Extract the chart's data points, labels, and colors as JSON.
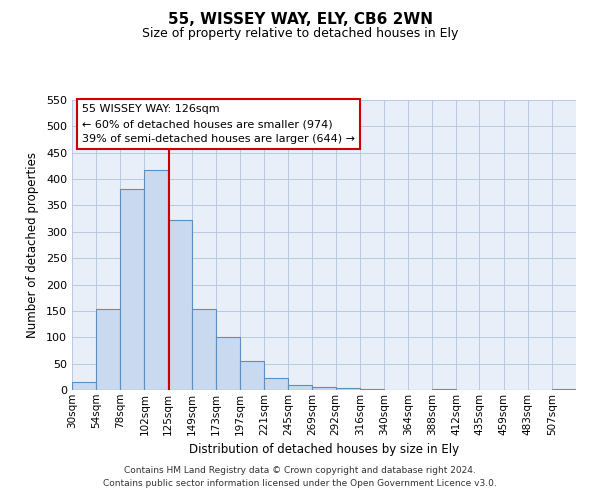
{
  "title": "55, WISSEY WAY, ELY, CB6 2WN",
  "subtitle": "Size of property relative to detached houses in Ely",
  "xlabel": "Distribution of detached houses by size in Ely",
  "ylabel": "Number of detached properties",
  "bin_labels": [
    "30sqm",
    "54sqm",
    "78sqm",
    "102sqm",
    "125sqm",
    "149sqm",
    "173sqm",
    "197sqm",
    "221sqm",
    "245sqm",
    "269sqm",
    "292sqm",
    "316sqm",
    "340sqm",
    "364sqm",
    "388sqm",
    "412sqm",
    "435sqm",
    "459sqm",
    "483sqm",
    "507sqm"
  ],
  "bin_edges": [
    30,
    54,
    78,
    102,
    125,
    149,
    173,
    197,
    221,
    245,
    269,
    292,
    316,
    340,
    364,
    388,
    412,
    435,
    459,
    483,
    507
  ],
  "bar_values": [
    15,
    153,
    382,
    418,
    322,
    153,
    100,
    55,
    22,
    10,
    5,
    3,
    1,
    0,
    0,
    1,
    0,
    0,
    0,
    0,
    2
  ],
  "ylim": [
    0,
    550
  ],
  "yticks": [
    0,
    50,
    100,
    150,
    200,
    250,
    300,
    350,
    400,
    450,
    500,
    550
  ],
  "bar_color": "#c9d9f0",
  "bar_edge_color": "#5a8fc3",
  "grid_color": "#b0c4de",
  "bg_color": "#e8eff9",
  "property_size": 126,
  "property_line_color": "#cc0000",
  "annotation_line1": "55 WISSEY WAY: 126sqm",
  "annotation_line2": "← 60% of detached houses are smaller (974)",
  "annotation_line3": "39% of semi-detached houses are larger (644) →",
  "footer_line1": "Contains HM Land Registry data © Crown copyright and database right 2024.",
  "footer_line2": "Contains public sector information licensed under the Open Government Licence v3.0."
}
